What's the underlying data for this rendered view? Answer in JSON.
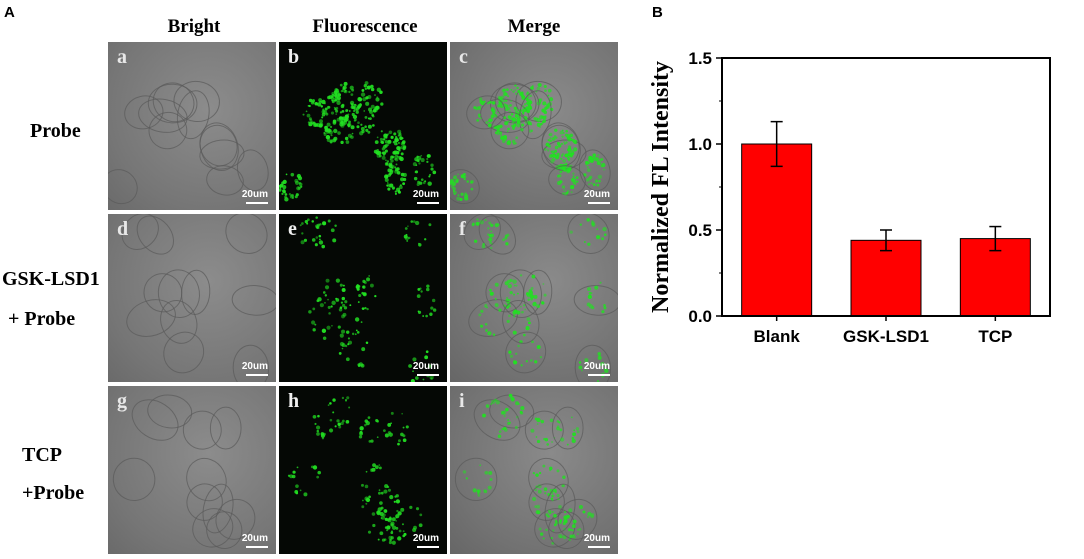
{
  "figure": {
    "panel_a_letter": "A",
    "panel_b_letter": "B",
    "columns": [
      "Bright",
      "Fluorescence",
      "Merge"
    ],
    "rows": [
      {
        "label_lines": [
          "Probe"
        ],
        "tiles": [
          "a",
          "b",
          "c"
        ]
      },
      {
        "label_lines": [
          "GSK-LSD1",
          "+ Probe"
        ],
        "tiles": [
          "d",
          "e",
          "f"
        ]
      },
      {
        "label_lines": [
          "TCP",
          "+Probe"
        ],
        "tiles": [
          "g",
          "h",
          "i"
        ]
      }
    ],
    "scale_label": "20um",
    "fluorescence_color": "#22e022"
  },
  "chart_data": {
    "type": "bar",
    "categories": [
      "Blank",
      "GSK-LSD1",
      "TCP"
    ],
    "values": [
      1.0,
      0.44,
      0.45
    ],
    "errors": [
      0.13,
      0.06,
      0.07
    ],
    "ylabel": "Normalized FL Intensity",
    "xlabel": "",
    "ylim": [
      0.0,
      1.5
    ],
    "yticks": [
      "0.0",
      "0.5",
      "1.0",
      "1.5"
    ],
    "bar_color": "#ff0000",
    "grid": false
  }
}
